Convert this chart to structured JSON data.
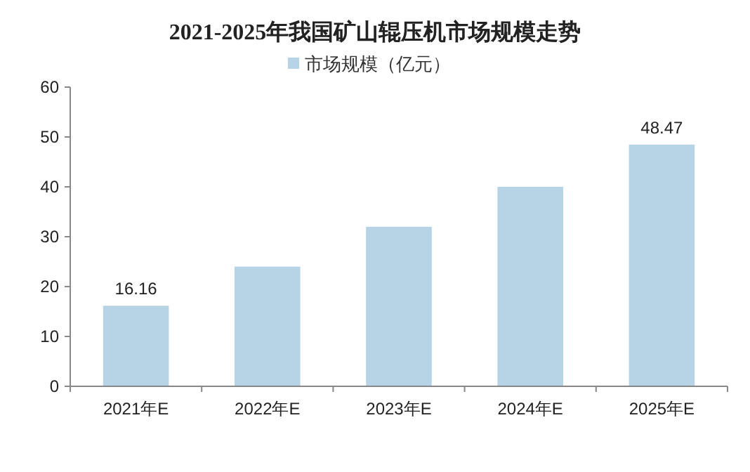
{
  "chart_data": {
    "type": "bar",
    "title": "2021-2025年我国矿山辊压机市场规模走势",
    "categories": [
      "2021年E",
      "2022年E",
      "2023年E",
      "2024年E",
      "2025年E"
    ],
    "series": [
      {
        "name": "市场规模（亿元）",
        "color": "#b7d3e6",
        "values": [
          16.16,
          24,
          32,
          40,
          48.47
        ],
        "value_labels": [
          "16.16",
          null,
          null,
          null,
          "48.47"
        ]
      }
    ],
    "ylim": [
      0,
      60
    ],
    "yticks": [
      0,
      10,
      20,
      30,
      40,
      50,
      60
    ],
    "legend": "top",
    "grid": false
  }
}
